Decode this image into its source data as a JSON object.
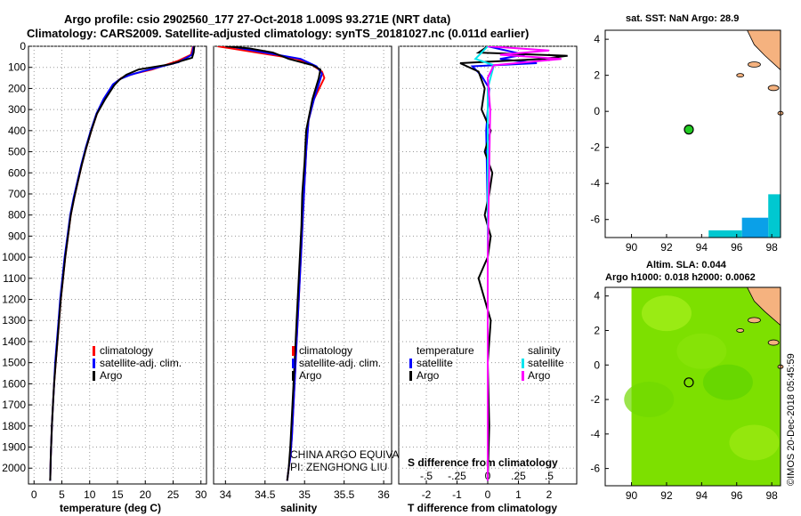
{
  "title": {
    "line1": "Argo profile: csio 2902560_177 27-Oct-2018 1.009S 93.271E (NRT data)",
    "line2": "Climatology: CARS2009. Satellite-adjusted climatology: synTS_20181027.nc (0.011d earlier)"
  },
  "colors": {
    "climatology": "#ff0000",
    "satellite": "#0000ff",
    "argo": "#000000",
    "salinity_sat": "#00e5ee",
    "salinity_argo": "#ff00ff",
    "land": "#f5b27f",
    "sst": "#00c8d0",
    "sla": "#7de000"
  },
  "chart_data": [
    {
      "id": "temperature",
      "type": "line",
      "xlabel": "temperature (deg C)",
      "ylabel": "",
      "xlim": [
        -1,
        31
      ],
      "ylim": [
        2075,
        0
      ],
      "xticks": [
        0,
        5,
        10,
        15,
        20,
        25,
        30
      ],
      "yticks": [
        0,
        100,
        200,
        300,
        400,
        500,
        600,
        700,
        800,
        900,
        1000,
        1100,
        1200,
        1300,
        1400,
        1500,
        1600,
        1700,
        1800,
        1900,
        2000
      ],
      "legend": [
        "climatology",
        "satellite-adj. clim.",
        "Argo"
      ],
      "series": [
        {
          "name": "climatology",
          "x": [
            28.6,
            28.2,
            25.8,
            21.2,
            18.0,
            15.7,
            14.3,
            12.6,
            11.3,
            10.3,
            9.4,
            8.6,
            7.9,
            7.2,
            6.6,
            6.1,
            5.6,
            5.2,
            4.8,
            4.5,
            4.2,
            3.9,
            3.6,
            3.4,
            3.2,
            3.0,
            2.9
          ],
          "y": [
            0,
            40,
            70,
            110,
            130,
            150,
            180,
            250,
            320,
            400,
            480,
            560,
            640,
            720,
            800,
            900,
            1000,
            1100,
            1200,
            1300,
            1400,
            1500,
            1600,
            1700,
            1800,
            1950,
            2060
          ]
        },
        {
          "name": "satellite-adj. clim.",
          "x": [
            28.7,
            28.4,
            26.0,
            20.0,
            17.4,
            15.5,
            14.2,
            12.5,
            11.2,
            10.2,
            9.3,
            8.5,
            7.8,
            7.1,
            6.5,
            6.0,
            5.5,
            5.1,
            4.7,
            4.4,
            4.1,
            3.8,
            3.6,
            3.4,
            3.2,
            3.0,
            2.9
          ],
          "y": [
            0,
            40,
            75,
            115,
            135,
            155,
            180,
            250,
            320,
            400,
            480,
            560,
            640,
            720,
            800,
            900,
            1000,
            1100,
            1200,
            1300,
            1400,
            1500,
            1600,
            1700,
            1800,
            1950,
            2060
          ]
        },
        {
          "name": "Argo",
          "x": [
            28.8,
            28.7,
            28.4,
            24.5,
            18.8,
            16.6,
            15.3,
            14.4,
            12.8,
            11.3,
            10.3,
            9.4,
            8.6,
            7.9,
            7.2,
            6.6,
            6.1,
            5.6,
            5.2,
            4.8,
            4.5,
            4.2,
            3.9,
            3.6,
            3.4,
            3.2,
            3.0,
            2.9
          ],
          "y": [
            0,
            30,
            55,
            85,
            110,
            135,
            160,
            185,
            250,
            320,
            400,
            480,
            560,
            640,
            720,
            800,
            900,
            1000,
            1100,
            1200,
            1300,
            1400,
            1500,
            1600,
            1700,
            1800,
            1950,
            2060
          ]
        }
      ]
    },
    {
      "id": "salinity",
      "type": "line",
      "xlabel": "salinity",
      "xlim": [
        33.85,
        36.1
      ],
      "ylim": [
        2075,
        0
      ],
      "xticks": [
        34,
        34.5,
        35,
        35.5,
        36
      ],
      "legend": [
        "climatology",
        "satellite-adj. clim.",
        "Argo"
      ],
      "annotation": [
        "CHINA ARGO EQUIVALENT",
        "PI: ZENGHONG LIU"
      ],
      "series": [
        {
          "name": "climatology",
          "x": [
            33.9,
            34.4,
            34.9,
            35.1,
            35.22,
            35.25,
            35.12,
            35.05,
            35.02,
            35.0,
            34.98,
            34.96,
            34.94,
            34.92,
            34.9,
            34.88,
            34.86,
            34.84,
            34.82,
            34.8,
            34.78
          ],
          "y": [
            0,
            30,
            60,
            90,
            120,
            150,
            250,
            350,
            500,
            650,
            800,
            950,
            1100,
            1250,
            1400,
            1550,
            1700,
            1850,
            1950,
            2000,
            2060
          ]
        },
        {
          "name": "satellite-adj. clim.",
          "x": [
            34.05,
            34.5,
            34.95,
            35.15,
            35.22,
            35.12,
            35.05,
            35.02,
            35.0,
            34.98,
            34.96,
            34.94,
            34.92,
            34.9,
            34.88,
            34.86,
            34.84,
            34.82,
            34.8,
            34.78
          ],
          "y": [
            0,
            30,
            60,
            95,
            130,
            250,
            350,
            500,
            650,
            800,
            950,
            1100,
            1250,
            1400,
            1550,
            1700,
            1850,
            1950,
            2000,
            2060
          ]
        },
        {
          "name": "Argo",
          "x": [
            34.0,
            34.3,
            34.6,
            34.8,
            35.1,
            35.2,
            35.18,
            35.1,
            35.02,
            35.0,
            34.97,
            34.96,
            34.94,
            34.92,
            34.9,
            34.88,
            34.86,
            34.84,
            34.82,
            34.8,
            34.78
          ],
          "y": [
            0,
            10,
            30,
            60,
            90,
            110,
            150,
            250,
            400,
            550,
            700,
            850,
            1000,
            1150,
            1300,
            1450,
            1600,
            1750,
            1900,
            2000,
            2060
          ]
        }
      ]
    },
    {
      "id": "differences",
      "type": "line",
      "xlabel": "T difference from climatology",
      "xlabel_top": "S difference from climatology",
      "xlim": [
        -2.9,
        2.9
      ],
      "ylim": [
        2075,
        0
      ],
      "xticks": [
        -2,
        -1,
        0,
        1,
        2
      ],
      "sticks": [
        -0.5,
        -0.25,
        0,
        0.25,
        0.5
      ],
      "legend_temperature": [
        "temperature",
        "satellite",
        "Argo"
      ],
      "legend_salinity": [
        "salinity",
        "satellite",
        "Argo"
      ],
      "series": [
        {
          "name": "temperature satellite",
          "x": [
            0.0,
            1.2,
            0.4,
            1.6,
            -0.5,
            -0.2,
            0.05,
            -0.05,
            0.0,
            0.0,
            0.0,
            0.0
          ],
          "y": [
            0,
            40,
            60,
            80,
            95,
            140,
            200,
            400,
            800,
            1200,
            1600,
            2060
          ]
        },
        {
          "name": "temperature Argo",
          "x": [
            0.0,
            -0.3,
            2.6,
            1.8,
            -0.9,
            -0.3,
            -0.1,
            -0.2,
            0.1,
            -0.1,
            0.15,
            0.05,
            -0.1,
            0.1,
            0.0,
            -0.15,
            -0.3,
            0.1,
            0.0,
            0.05,
            0.0
          ],
          "y": [
            0,
            30,
            45,
            60,
            80,
            120,
            200,
            300,
            400,
            500,
            600,
            700,
            800,
            900,
            1000,
            1050,
            1100,
            1300,
            1500,
            1800,
            2060
          ]
        },
        {
          "name": "salinity satellite",
          "x": [
            0.0,
            -0.1,
            0.05,
            0.0,
            0.0,
            0.0,
            0.0
          ],
          "y": [
            0,
            60,
            90,
            200,
            800,
            1400,
            2060
          ]
        },
        {
          "name": "salinity Argo",
          "x": [
            0.0,
            0.5,
            0.1,
            0.6,
            0.05,
            0.0,
            0.02,
            0.0,
            0.0
          ],
          "y": [
            0,
            20,
            40,
            60,
            90,
            150,
            300,
            1000,
            2060
          ]
        }
      ]
    }
  ],
  "maps": {
    "sst": {
      "title": "sat. SST: NaN Argo: 28.9",
      "xticks": [
        "90",
        "92",
        "94",
        "96",
        "98"
      ],
      "yticks": [
        "4",
        "2",
        "0",
        "-2",
        "-4",
        "-6"
      ],
      "xlim": [
        88.5,
        98.5
      ],
      "ylim": [
        -7,
        4.5
      ],
      "argo_position": {
        "lon": 93.271,
        "lat": -1.009
      }
    },
    "sla": {
      "title1": "Altim. SLA: 0.044",
      "title2": "Argo h1000: 0.018 h2000: 0.0062",
      "xticks": [
        "90",
        "92",
        "94",
        "96",
        "98"
      ],
      "yticks": [
        "4",
        "2",
        "0",
        "-2",
        "-4",
        "-6"
      ],
      "xlim": [
        88.5,
        98.5
      ],
      "ylim": [
        -7,
        4.5
      ],
      "argo_position": {
        "lon": 93.271,
        "lat": -1.009
      }
    }
  },
  "credit": "©IMOS 20-Dec-2018 05:45:59"
}
